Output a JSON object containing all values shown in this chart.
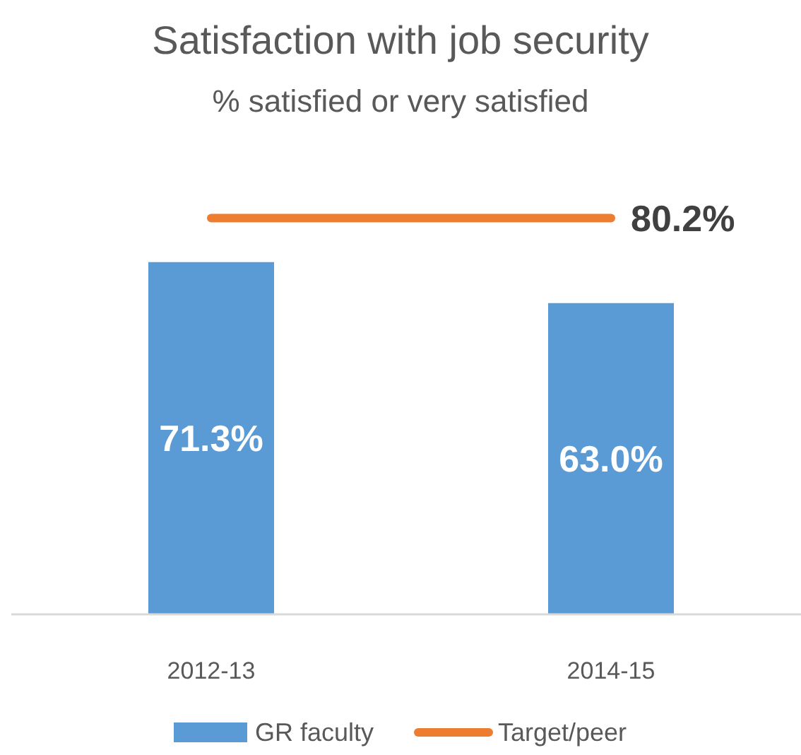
{
  "chart_data": {
    "type": "bar",
    "title": "Satisfaction with job security",
    "subtitle": "% satisfied or very satisfied",
    "categories": [
      "2012-13",
      "2014-15"
    ],
    "series": [
      {
        "name": "GR faculty",
        "color": "#5b9bd5",
        "values": [
          71.3,
          63.0
        ],
        "value_labels": [
          "71.3%",
          "63.0%"
        ]
      },
      {
        "name": "Target/peer",
        "type": "line",
        "color": "#ed7d31",
        "values": [
          80.2,
          80.2
        ],
        "value_labels": [
          null,
          "80.2%"
        ]
      }
    ],
    "tick_labels": "x",
    "legend": "bottom"
  }
}
